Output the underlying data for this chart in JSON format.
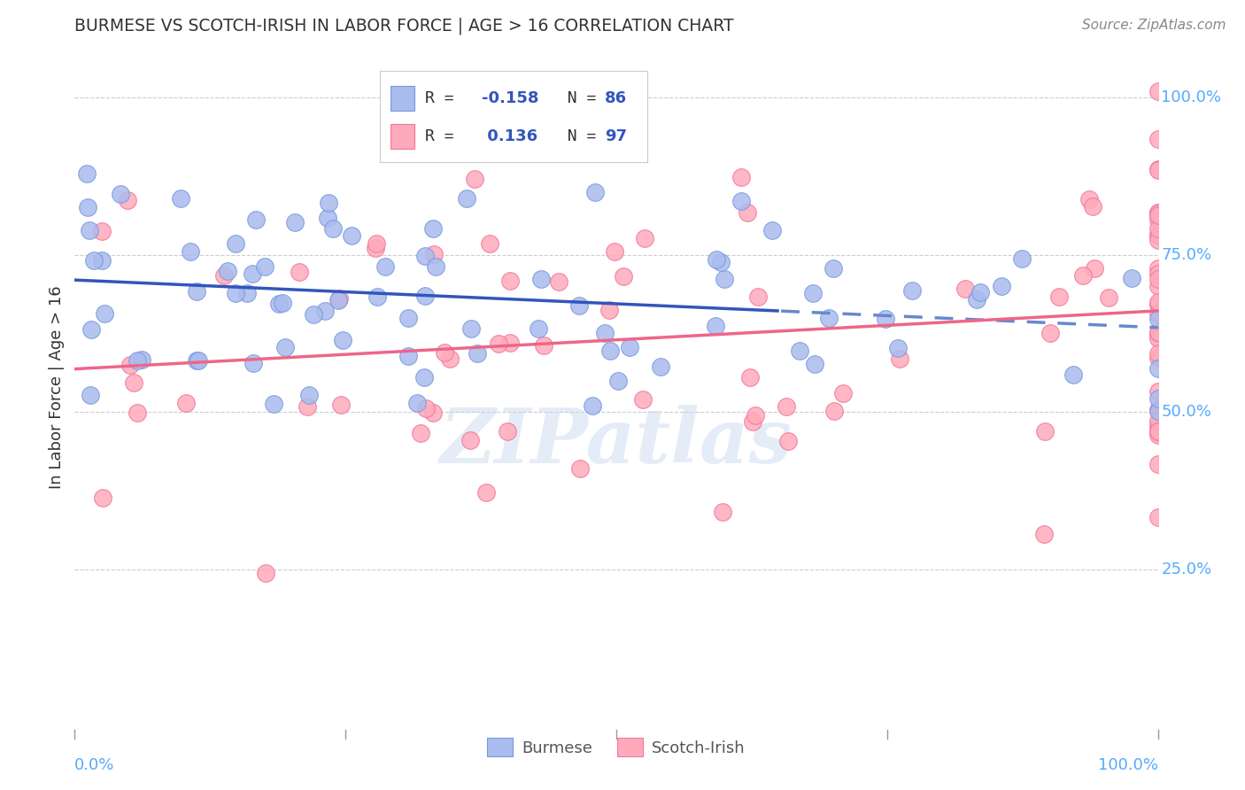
{
  "title": "BURMESE VS SCOTCH-IRISH IN LABOR FORCE | AGE > 16 CORRELATION CHART",
  "source": "Source: ZipAtlas.com",
  "ylabel": "In Labor Force | Age > 16",
  "burmese_color": "#aabbee",
  "burmese_edge_color": "#7799dd",
  "scotch_color": "#ffaabb",
  "scotch_edge_color": "#ee7799",
  "burmese_R": -0.158,
  "burmese_N": 86,
  "scotch_R": 0.136,
  "scotch_N": 97,
  "legend_R_color": "#3355bb",
  "trend_blue_color": "#3355bb",
  "trend_blue_dashed_color": "#6688cc",
  "trend_pink_color": "#ee6688",
  "watermark": "ZIPatlas",
  "background_color": "#ffffff",
  "grid_color": "#cccccc",
  "right_axis_color": "#55aaff",
  "ytick_positions": [
    0.25,
    0.5,
    0.75,
    1.0
  ],
  "ytick_labels": [
    "25.0%",
    "50.0%",
    "75.0%",
    "100.0%"
  ]
}
